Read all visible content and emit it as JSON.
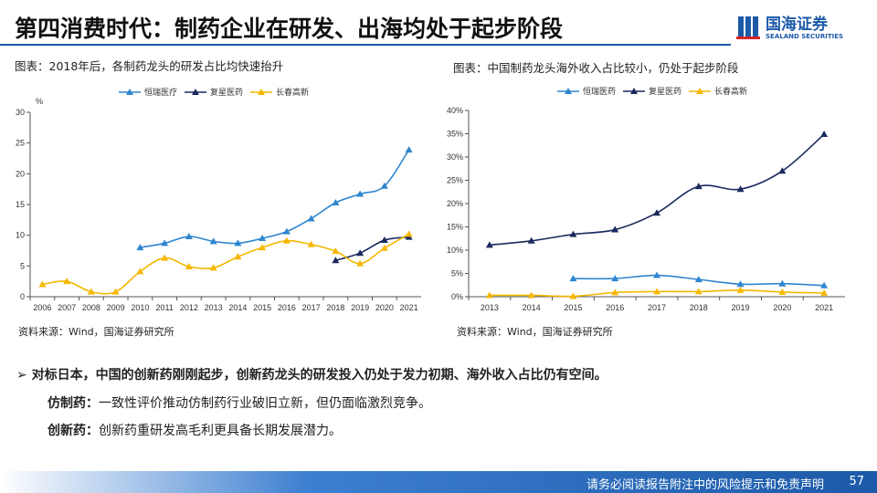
{
  "header": {
    "title": "第四消费时代：制药企业在研发、出海均处于起步阶段",
    "logo_cn": "国海证券",
    "logo_en": "SEALAND SECURITIES"
  },
  "colors": {
    "hengrui": "#2e86d0",
    "fosun": "#1a2a5e",
    "changchun": "#f5b800",
    "accent": "#1c5aa8"
  },
  "chart_data": [
    {
      "type": "line",
      "title": "图表：2018年后，各制药龙头的研发占比均快速抬升",
      "ylabel": "%",
      "ylim": [
        0,
        30
      ],
      "yticks": [
        "0",
        "5",
        "10",
        "15",
        "20",
        "25",
        "30"
      ],
      "ytick_values": [
        0,
        5,
        10,
        15,
        20,
        25,
        30
      ],
      "categories": [
        "2006",
        "2007",
        "2008",
        "2009",
        "2010",
        "2011",
        "2012",
        "2013",
        "2014",
        "2015",
        "2016",
        "2017",
        "2018",
        "2019",
        "2020",
        "2021"
      ],
      "legend": "top-center",
      "series": [
        {
          "name": "恒瑞医疗",
          "color": "#2e86d0",
          "values": [
            null,
            null,
            null,
            null,
            8.0,
            8.7,
            9.8,
            9.0,
            8.7,
            9.5,
            10.6,
            12.7,
            15.3,
            16.7,
            18.0,
            23.9
          ]
        },
        {
          "name": "复星医药",
          "color": "#1a2a5e",
          "values": [
            null,
            null,
            null,
            null,
            null,
            null,
            null,
            null,
            null,
            null,
            null,
            null,
            5.9,
            7.1,
            9.2,
            9.7
          ]
        },
        {
          "name": "长春高新",
          "color": "#f5b800",
          "values": [
            2.0,
            2.5,
            0.8,
            0.8,
            4.1,
            6.3,
            4.9,
            4.7,
            6.5,
            8.0,
            9.1,
            8.5,
            7.4,
            5.4,
            7.9,
            10.2
          ]
        }
      ],
      "source": "资料来源：Wind，国海证券研究所"
    },
    {
      "type": "line",
      "title": "图表：中国制药龙头海外收入占比较小，仍处于起步阶段",
      "ylabel": "",
      "ylim": [
        0,
        40
      ],
      "yticks": [
        "0%",
        "5%",
        "10%",
        "15%",
        "20%",
        "25%",
        "30%",
        "35%",
        "40%"
      ],
      "ytick_values": [
        0,
        5,
        10,
        15,
        20,
        25,
        30,
        35,
        40
      ],
      "categories": [
        "2013",
        "2014",
        "2015",
        "2016",
        "2017",
        "2018",
        "2019",
        "2020",
        "2021"
      ],
      "legend": "top-center",
      "series": [
        {
          "name": "恒瑞医药",
          "color": "#2e86d0",
          "values": [
            null,
            null,
            3.9,
            3.9,
            4.6,
            3.7,
            2.7,
            2.8,
            2.4
          ]
        },
        {
          "name": "复星医药",
          "color": "#1a2a5e",
          "values": [
            11.1,
            12.0,
            13.4,
            14.4,
            18.0,
            23.7,
            23.1,
            27.0,
            34.9
          ]
        },
        {
          "name": "长春高新",
          "color": "#f5b800",
          "values": [
            0.3,
            0.3,
            0.1,
            0.9,
            1.1,
            1.1,
            1.4,
            1.0,
            0.8
          ]
        }
      ],
      "source": "资料来源：Wind，国海证券研究所"
    }
  ],
  "bullets": {
    "main": "对标日本，中国的创新药刚刚起步，创新药龙头的研发投入仍处于发力初期、海外收入占比仍有空间。",
    "sub1_label": "仿制药：",
    "sub1_text": "一致性评价推动仿制药行业破旧立新，但仍面临激烈竞争。",
    "sub2_label": "创新药：",
    "sub2_text": "创新药重研发高毛利更具备长期发展潜力。"
  },
  "footer": {
    "disclaimer": "请务必阅读报告附注中的风险提示和免责声明",
    "page": "57"
  }
}
